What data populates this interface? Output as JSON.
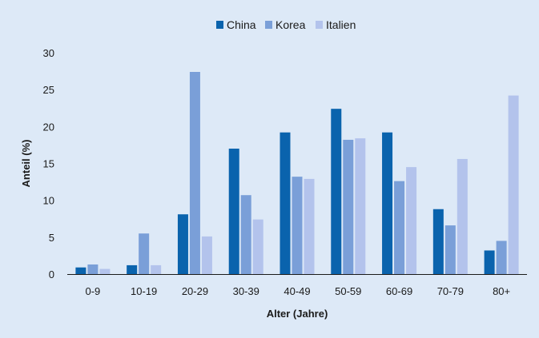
{
  "chart_data": {
    "type": "bar",
    "title": "",
    "xlabel": "Alter (Jahre)",
    "ylabel": "Anteil (%)",
    "ylim": [
      0,
      30
    ],
    "yticks": [
      0,
      5,
      10,
      15,
      20,
      25,
      30
    ],
    "grid": false,
    "legend_position": "top-center",
    "categories": [
      "0-9",
      "10-19",
      "20-29",
      "30-39",
      "40-49",
      "50-59",
      "60-69",
      "70-79",
      "80+"
    ],
    "series": [
      {
        "name": "China",
        "color": "#0a63ad",
        "values": [
          0.9,
          1.2,
          8.1,
          17.0,
          19.2,
          22.4,
          19.2,
          8.8,
          3.2
        ]
      },
      {
        "name": "Korea",
        "color": "#7a9fd8",
        "values": [
          1.3,
          5.5,
          27.4,
          10.7,
          13.2,
          18.2,
          12.6,
          6.6,
          4.5
        ]
      },
      {
        "name": "Italien",
        "color": "#b3c3ec",
        "values": [
          0.7,
          1.2,
          5.1,
          7.4,
          12.9,
          18.4,
          14.5,
          15.6,
          24.2
        ]
      }
    ]
  }
}
